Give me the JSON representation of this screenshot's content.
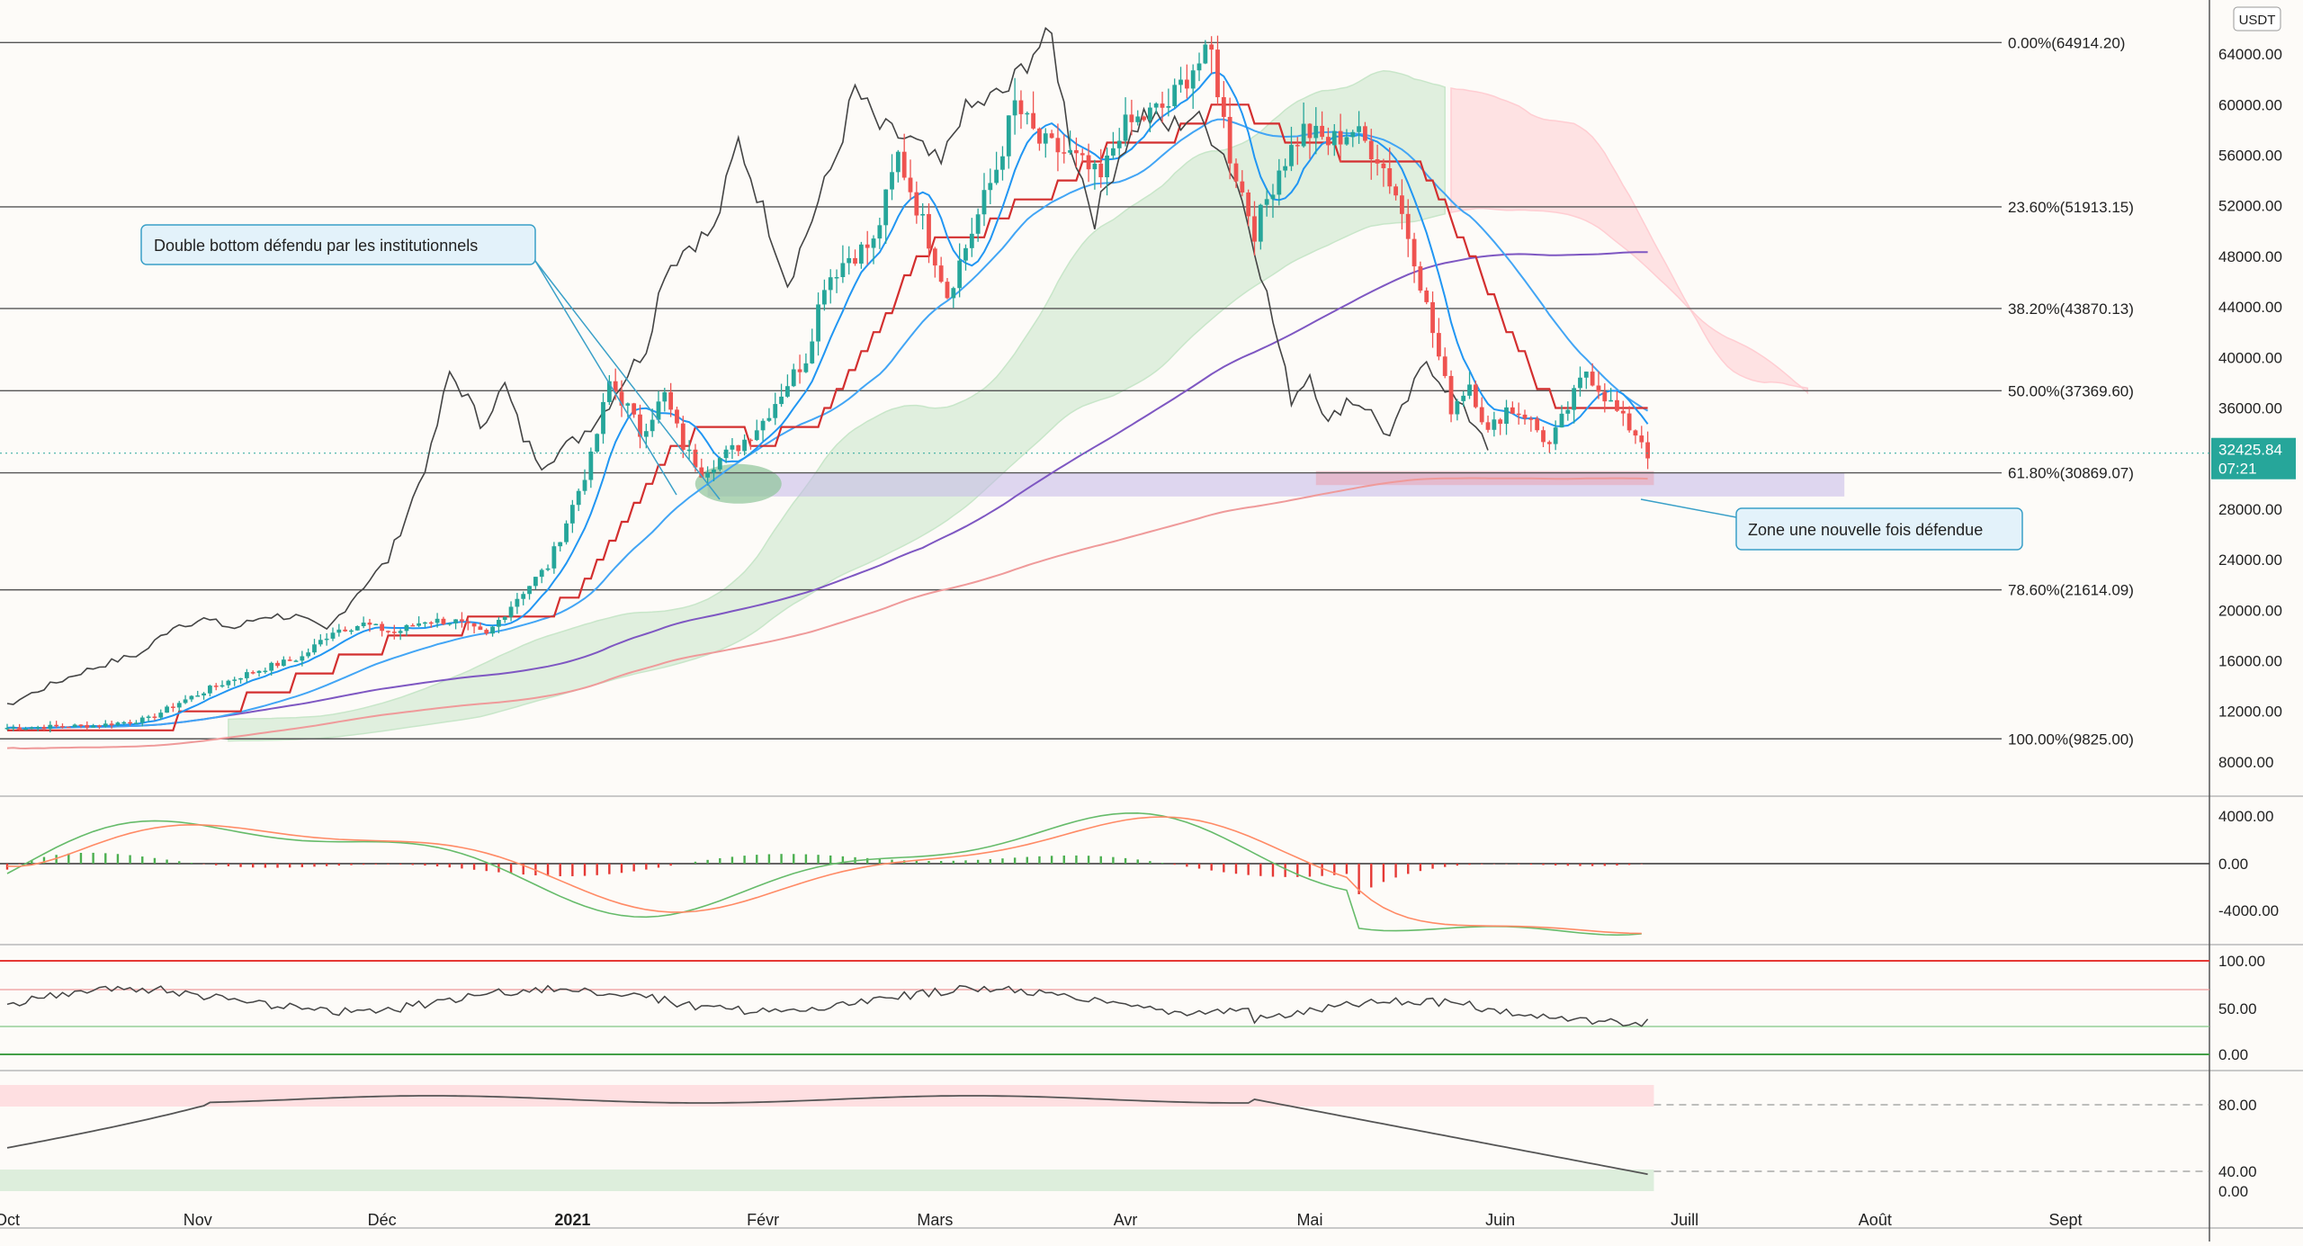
{
  "chart_data": {
    "type": "candlestick",
    "currency_badge": "USDT",
    "last_price_label": "32425.84",
    "countdown_label": "07:21",
    "x_axis": {
      "year_label": "2021",
      "months": [
        {
          "label": "Oct",
          "day": -3
        },
        {
          "label": "Nov",
          "day": 28
        },
        {
          "label": "Déc",
          "day": 58
        },
        {
          "label": "2021",
          "day": 89,
          "bold": true
        },
        {
          "label": "Févr",
          "day": 120
        },
        {
          "label": "Mars",
          "day": 148
        },
        {
          "label": "Avr",
          "day": 179
        },
        {
          "label": "Mai",
          "day": 209
        },
        {
          "label": "Juin",
          "day": 240
        },
        {
          "label": "Juill",
          "day": 270
        },
        {
          "label": "Août",
          "day": 301
        },
        {
          "label": "Sept",
          "day": 332
        }
      ]
    },
    "price_axis": {
      "ticks": [
        "64000.00",
        "60000.00",
        "56000.00",
        "52000.00",
        "48000.00",
        "44000.00",
        "40000.00",
        "36000.00",
        "32000.00",
        "28000.00",
        "24000.00",
        "20000.00",
        "16000.00",
        "12000.00",
        "8000.00"
      ],
      "range": [
        6000,
        66500
      ]
    },
    "fibonacci": [
      {
        "label": "0.00%(64914.20)",
        "price": 64914.2
      },
      {
        "label": "23.60%(51913.15)",
        "price": 51913.15
      },
      {
        "label": "38.20%(43870.13)",
        "price": 43870.13
      },
      {
        "label": "50.00%(37369.60)",
        "price": 37369.6
      },
      {
        "label": "61.80%(30869.07)",
        "price": 30869.07
      },
      {
        "label": "78.60%(21614.09)",
        "price": 21614.09
      },
      {
        "label": "100.00%(9825.00)",
        "price": 9825.0
      }
    ],
    "annotations": [
      {
        "text": "Double bottom défendu par les institutionnels"
      },
      {
        "text": "Zone une nouvelle fois défendue"
      }
    ],
    "support_zone": {
      "low": 29000,
      "high": 30900
    },
    "price_anchors": [
      [
        -3,
        10700
      ],
      [
        5,
        10800
      ],
      [
        12,
        10900
      ],
      [
        20,
        11400
      ],
      [
        25,
        12700
      ],
      [
        30,
        13800
      ],
      [
        35,
        14800
      ],
      [
        40,
        15600
      ],
      [
        45,
        16300
      ],
      [
        50,
        18400
      ],
      [
        55,
        18900
      ],
      [
        60,
        18200
      ],
      [
        65,
        19200
      ],
      [
        70,
        19100
      ],
      [
        75,
        18000
      ],
      [
        80,
        21000
      ],
      [
        85,
        23500
      ],
      [
        88,
        27000
      ],
      [
        92,
        32000
      ],
      [
        95,
        38000
      ],
      [
        98,
        36000
      ],
      [
        100,
        34000
      ],
      [
        104,
        37000
      ],
      [
        107,
        33000
      ],
      [
        110,
        31000
      ],
      [
        113,
        32000
      ],
      [
        116,
        33000
      ],
      [
        120,
        35000
      ],
      [
        124,
        38000
      ],
      [
        127,
        40000
      ],
      [
        130,
        46000
      ],
      [
        134,
        48000
      ],
      [
        138,
        49000
      ],
      [
        142,
        56000
      ],
      [
        145,
        52000
      ],
      [
        148,
        48000
      ],
      [
        150,
        45000
      ],
      [
        154,
        50000
      ],
      [
        158,
        55000
      ],
      [
        161,
        60000
      ],
      [
        165,
        57000
      ],
      [
        170,
        56000
      ],
      [
        175,
        54000
      ],
      [
        178,
        58000
      ],
      [
        182,
        59000
      ],
      [
        186,
        60000
      ],
      [
        190,
        63000
      ],
      [
        193,
        64000
      ],
      [
        196,
        56000
      ],
      [
        200,
        50000
      ],
      [
        204,
        55000
      ],
      [
        208,
        58000
      ],
      [
        212,
        57000
      ],
      [
        216,
        58000
      ],
      [
        220,
        56000
      ],
      [
        223,
        53000
      ],
      [
        226,
        48000
      ],
      [
        229,
        42000
      ],
      [
        232,
        36000
      ],
      [
        235,
        38000
      ],
      [
        238,
        34000
      ],
      [
        241,
        36000
      ],
      [
        244,
        35500
      ],
      [
        248,
        33000
      ],
      [
        251,
        36000
      ],
      [
        254,
        39000
      ],
      [
        257,
        37000
      ],
      [
        260,
        35000
      ],
      [
        263,
        33500
      ],
      [
        264,
        32400
      ]
    ],
    "indicators": [
      {
        "name": "MACD",
        "ticks": [
          "4000.00",
          "0.00",
          "-4000.00"
        ]
      },
      {
        "name": "RSI",
        "ticks": [
          "100.00",
          "50.00",
          "0.00"
        ]
      },
      {
        "name": "Stochastic",
        "ticks": [
          "80.00",
          "40.00",
          "0.00"
        ]
      }
    ],
    "colors": {
      "bull": "#26a69a",
      "bear": "#ef5350",
      "kijun": "#d32f2f",
      "tenkan": "#2196f3",
      "ma50": "#42a5f5",
      "ma200": "#7e57c2",
      "ma_long": "#ef9a9a",
      "chikou": "#444444",
      "fib": "#555555",
      "zone": "#c5b8e8",
      "cloud_bull": "#c8e6c9",
      "cloud_bear": "#ffcdd2"
    }
  }
}
